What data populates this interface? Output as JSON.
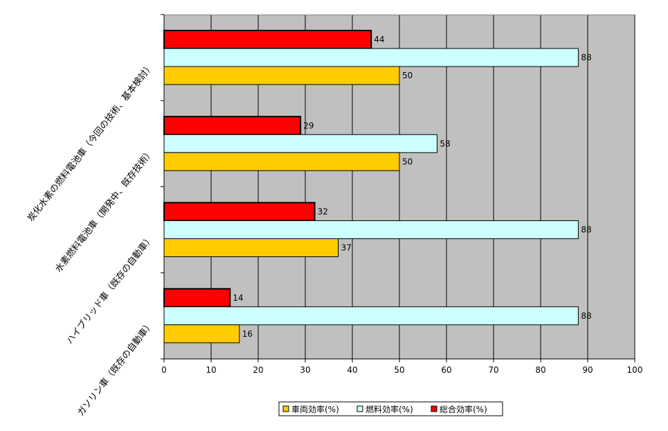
{
  "chart_data": {
    "type": "bar",
    "orientation": "horizontal",
    "categories": [
      "炭化水素の燃料電池車（今回の技術、基本検討）",
      "水素燃料電池車（開発中、既存技術）",
      "ハイブリッド車（既存の自動車）",
      "ガソリン車（既存の自動車）"
    ],
    "series": [
      {
        "name": "総合効率(%)",
        "color": "#ff0000",
        "values": [
          44,
          29,
          32,
          14
        ]
      },
      {
        "name": "燃料効率(%)",
        "color": "#ccffff",
        "values": [
          88,
          58,
          88,
          88
        ]
      },
      {
        "name": "車両効率(%)",
        "color": "#ffcc00",
        "values": [
          50,
          50,
          37,
          16
        ]
      }
    ],
    "legend_order": [
      "車両効率(%)",
      "燃料効率(%)",
      "総合効率(%)"
    ],
    "xlim": [
      0,
      100
    ],
    "xticks": [
      0,
      10,
      20,
      30,
      40,
      50,
      60,
      70,
      80,
      90,
      100
    ],
    "grid": true,
    "legend_position": "bottom",
    "plot_background": "#c0c0c0",
    "title": "",
    "xlabel": "",
    "ylabel": ""
  }
}
